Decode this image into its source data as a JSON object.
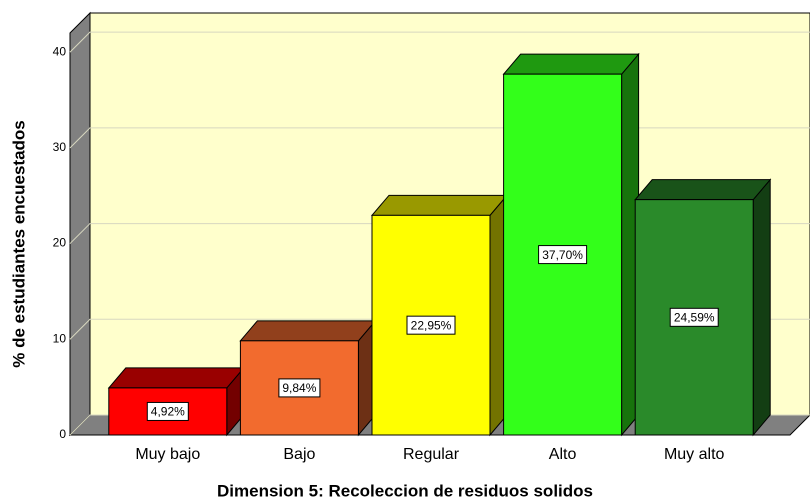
{
  "chart_data": {
    "type": "bar3d",
    "x_label": "Dimension 5: Recoleccion de residuos solidos",
    "y_label": "% de estudiantes encuestados",
    "categories": [
      "Muy bajo",
      "Bajo",
      "Regular",
      "Alto",
      "Muy alto"
    ],
    "values": [
      4.92,
      9.84,
      22.95,
      37.7,
      24.59
    ],
    "value_labels": [
      "4,92%",
      "9,84%",
      "22,95%",
      "37,70%",
      "24,59%"
    ],
    "colors": [
      "#ff0000",
      "#f26b2e",
      "#ffff00",
      "#33ff1a",
      "#2a8a2a"
    ],
    "ylim": [
      0,
      42
    ],
    "yticks": [
      0,
      10,
      20,
      30,
      40
    ],
    "grid": true
  }
}
